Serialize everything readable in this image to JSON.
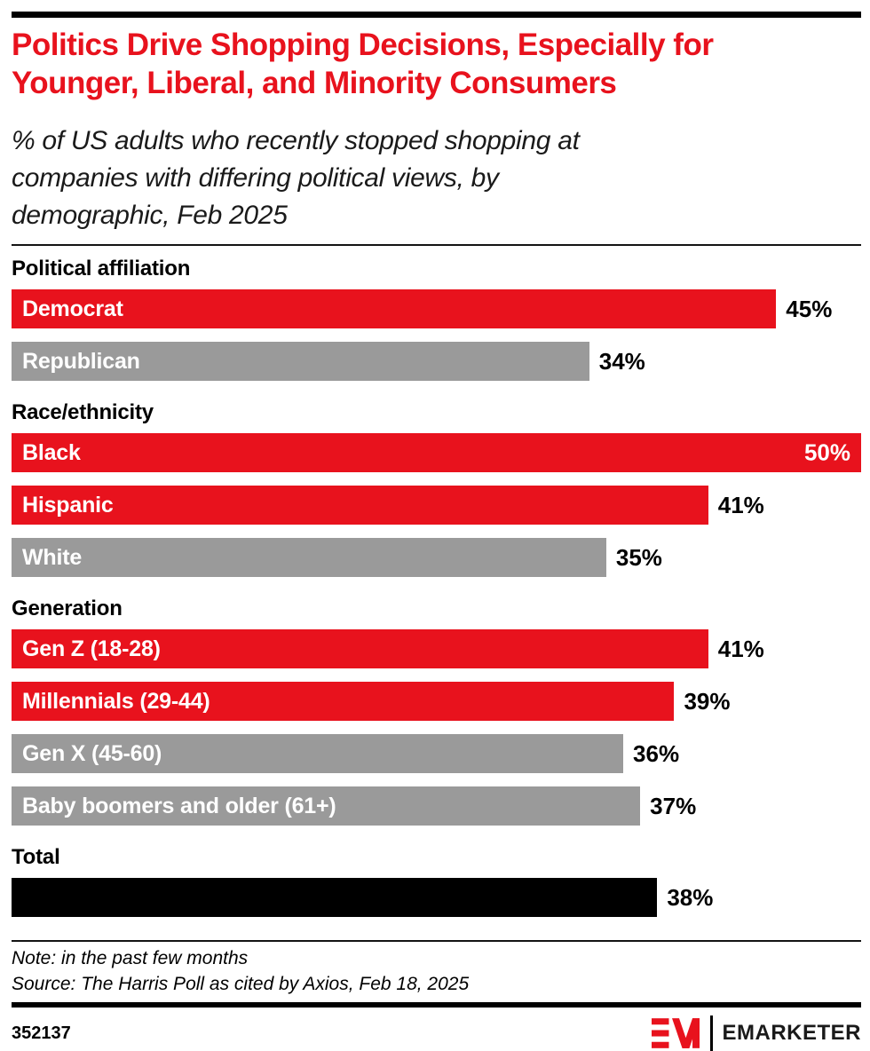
{
  "header": {
    "title_lines": [
      "Politics Drive Shopping Decisions, Especially for",
      "Younger, Liberal, and Minority Consumers"
    ],
    "subtitle_lines": [
      "% of US adults who recently stopped shopping at",
      "companies with differing political views, by",
      "demographic, Feb 2025"
    ]
  },
  "colors": {
    "red": "#E8121D",
    "gray": "#9A9A9A",
    "black": "#000000"
  },
  "chart_data": {
    "type": "bar",
    "orientation": "horizontal",
    "unit": "%",
    "axis_max": 50,
    "grid": false,
    "legend": false,
    "groups": [
      {
        "label": "Political affiliation",
        "bars": [
          {
            "label": "Democrat",
            "value": 45,
            "color": "red"
          },
          {
            "label": "Republican",
            "value": 34,
            "color": "gray"
          }
        ]
      },
      {
        "label": "Race/ethnicity",
        "bars": [
          {
            "label": "Black",
            "value": 50,
            "color": "red",
            "value_inside": true
          },
          {
            "label": "Hispanic",
            "value": 41,
            "color": "red"
          },
          {
            "label": "White",
            "value": 35,
            "color": "gray"
          }
        ]
      },
      {
        "label": "Generation",
        "bars": [
          {
            "label": "Gen Z (18-28)",
            "value": 41,
            "color": "red"
          },
          {
            "label": "Millennials (29-44)",
            "value": 39,
            "color": "red"
          },
          {
            "label": "Gen X (45-60)",
            "value": 36,
            "color": "gray"
          },
          {
            "label": "Baby boomers and older (61+)",
            "value": 37,
            "color": "gray"
          }
        ]
      },
      {
        "label": "Total",
        "bars": [
          {
            "label": "",
            "value": 38,
            "color": "black"
          }
        ]
      }
    ]
  },
  "footer": {
    "note": "Note: in the past few months",
    "source": "Source: The Harris Poll as cited by Axios, Feb 18, 2025",
    "chart_id": "352137",
    "brand": "EMARKETER"
  }
}
